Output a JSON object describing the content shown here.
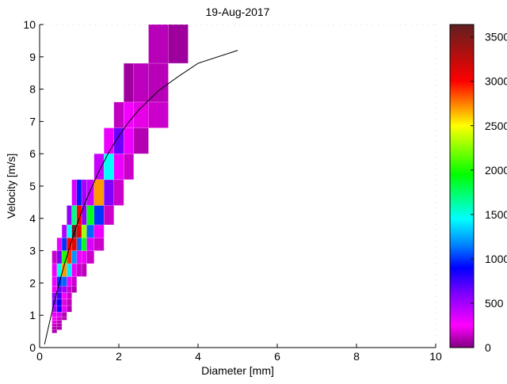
{
  "chart_data": {
    "type": "heatmap",
    "title": "19-Aug-2017",
    "xlabel": "Diameter [mm]",
    "ylabel": "Velocity [m/s]",
    "xlim": [
      0,
      10
    ],
    "ylim": [
      0,
      10
    ],
    "xticks": [
      "0",
      "2",
      "4",
      "6",
      "8",
      "10"
    ],
    "yticks": [
      "0",
      "1",
      "2",
      "3",
      "4",
      "5",
      "6",
      "7",
      "8",
      "9",
      "10"
    ],
    "grid": false,
    "colorbar": {
      "position": "right",
      "range": [
        0,
        3640
      ],
      "ticks": [
        "0",
        "500",
        "1000",
        "1500",
        "2000",
        "2500",
        "3000",
        "3500"
      ],
      "colormap": [
        {
          "value": 0,
          "color": "#800080"
        },
        {
          "value": 250,
          "color": "#ff00ff"
        },
        {
          "value": 600,
          "color": "#8000ff"
        },
        {
          "value": 900,
          "color": "#0000ff"
        },
        {
          "value": 1150,
          "color": "#0080ff"
        },
        {
          "value": 1450,
          "color": "#00ffff"
        },
        {
          "value": 1950,
          "color": "#00ff00"
        },
        {
          "value": 2500,
          "color": "#ffff00"
        },
        {
          "value": 3000,
          "color": "#ff0000"
        },
        {
          "value": 3640,
          "color": "#602020"
        }
      ]
    },
    "diameter_edges": [
      0.312,
      0.437,
      0.562,
      0.687,
      0.812,
      0.937,
      1.062,
      1.187,
      1.375,
      1.625,
      1.875,
      2.125,
      2.375,
      2.75,
      3.25,
      3.75
    ],
    "cells": [
      {
        "v": [
          0.45,
          0.55
        ],
        "counts": {
          "0": 80
        }
      },
      {
        "v": [
          0.55,
          0.65
        ],
        "counts": {
          "0": 100,
          "1": 80
        }
      },
      {
        "v": [
          0.65,
          0.75
        ],
        "counts": {
          "0": 150,
          "1": 100
        }
      },
      {
        "v": [
          0.75,
          0.85
        ],
        "counts": {
          "0": 200,
          "1": 120
        }
      },
      {
        "v": [
          0.85,
          0.95
        ],
        "counts": {
          "0": 250,
          "1": 150,
          "2": 100
        }
      },
      {
        "v": [
          0.95,
          1.1
        ],
        "counts": {
          "0": 300,
          "1": 350,
          "2": 100
        }
      },
      {
        "v": [
          1.1,
          1.3
        ],
        "counts": {
          "0": 450,
          "1": 850,
          "2": 300,
          "3": 100
        }
      },
      {
        "v": [
          1.3,
          1.5
        ],
        "counts": {
          "0": 600,
          "1": 900,
          "2": 200,
          "3": 120
        }
      },
      {
        "v": [
          1.5,
          1.7
        ],
        "counts": {
          "0": 550,
          "1": 750,
          "2": 250,
          "3": 150
        }
      },
      {
        "v": [
          1.7,
          1.9
        ],
        "counts": {
          "0": 300,
          "1": 650,
          "2": 500,
          "3": 150,
          "4": 100
        }
      },
      {
        "v": [
          1.9,
          2.2
        ],
        "counts": {
          "0": 300,
          "1": 1000,
          "2": 1100,
          "3": 300,
          "4": 150
        }
      },
      {
        "v": [
          2.2,
          2.6
        ],
        "counts": {
          "0": 300,
          "1": 1500,
          "2": 2700,
          "3": 1400,
          "4": 300,
          "5": 150,
          "6": 120
        }
      },
      {
        "v": [
          2.6,
          3.0
        ],
        "counts": {
          "0": 150,
          "1": 600,
          "2": 2000,
          "3": 2900,
          "4": 1200,
          "5": 300,
          "6": 300,
          "7": 150
        }
      },
      {
        "v": [
          3.0,
          3.4
        ],
        "counts": {
          "1": 300,
          "2": 1000,
          "3": 3000,
          "4": 3100,
          "5": 1100,
          "6": 1900,
          "7": 350,
          "8": 150
        }
      },
      {
        "v": [
          3.4,
          3.8
        ],
        "counts": {
          "2": 450,
          "3": 1450,
          "4": 3600,
          "5": 3100,
          "6": 2300,
          "7": 1100,
          "8": 300
        }
      },
      {
        "v": [
          3.8,
          4.4
        ],
        "counts": {
          "3": 550,
          "4": 1700,
          "5": 3000,
          "6": 550,
          "7": 1900,
          "8": 1000,
          "9": 150
        }
      },
      {
        "v": [
          4.4,
          5.2
        ],
        "counts": {
          "4": 350,
          "5": 950,
          "6": 500,
          "7": 400,
          "8": 2700,
          "9": 600,
          "10": 150
        }
      },
      {
        "v": [
          5.2,
          6.0
        ],
        "counts": {
          "8": 400,
          "9": 1450,
          "10": 300,
          "11": 150
        }
      },
      {
        "v": [
          6.0,
          6.8
        ],
        "counts": {
          "9": 300,
          "10": 650,
          "11": 300,
          "12": 100
        }
      },
      {
        "v": [
          6.8,
          7.6
        ],
        "counts": {
          "10": 130,
          "11": 280,
          "12": 200,
          "13": 150
        }
      },
      {
        "v": [
          7.6,
          8.8
        ],
        "counts": {
          "11": 60,
          "12": 120,
          "13": 110
        }
      },
      {
        "v": [
          8.8,
          10.4
        ],
        "counts": {
          "13": 110,
          "14": 60
        }
      }
    ],
    "fit_line": {
      "x": [
        0.125,
        0.25,
        0.375,
        0.5,
        0.625,
        0.75,
        0.875,
        1.0,
        1.125,
        1.25,
        1.5,
        1.75,
        2.0,
        2.25,
        2.5,
        3.0,
        3.5,
        4.0,
        5.0
      ],
      "y": [
        0.1,
        0.78,
        1.43,
        2.02,
        2.57,
        3.08,
        3.56,
        4.0,
        4.41,
        4.78,
        5.46,
        6.05,
        6.55,
        6.98,
        7.35,
        7.95,
        8.39,
        8.8,
        9.2
      ],
      "color": "#000000"
    }
  }
}
